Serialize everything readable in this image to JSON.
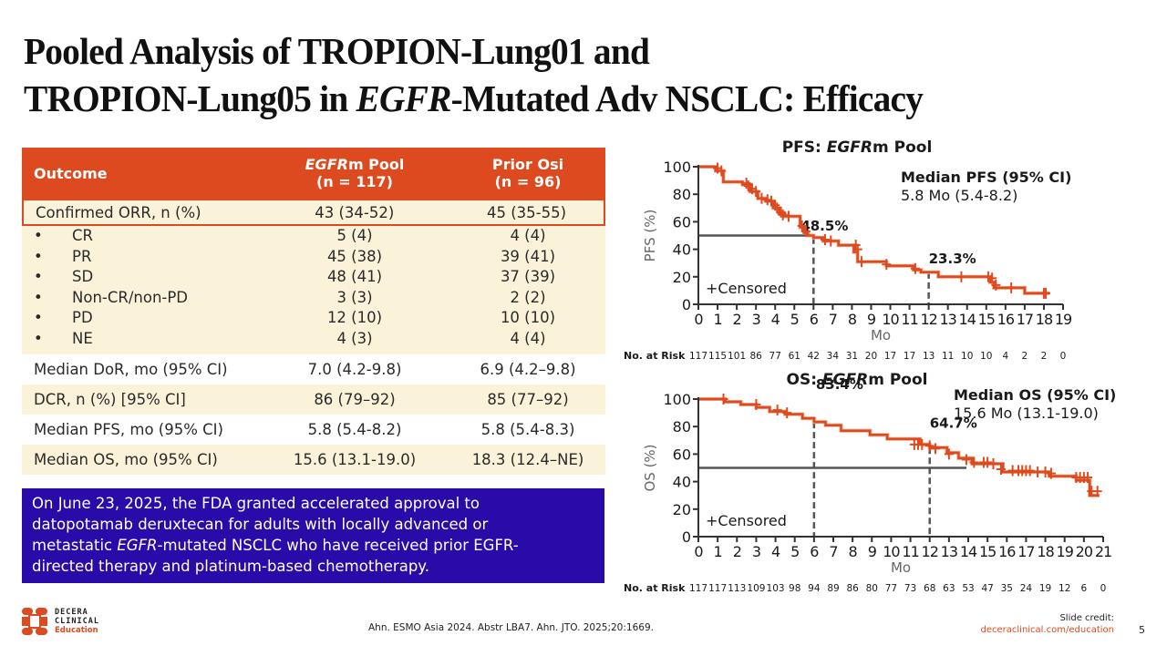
{
  "slide": {
    "title_line1": "Pooled Analysis of TROPION-Lung01 and",
    "title_line2_pre": "TROPION-Lung05 in ",
    "title_line2_italic": "EGFR",
    "title_line2_post": "-Mutated Adv NSCLC: Efficacy"
  },
  "table": {
    "header": {
      "outcome": "Outcome",
      "col1_italic": "EGFR",
      "col1_rest": "m Pool",
      "col1_n": "(n = 117)",
      "col2": "Prior Osi",
      "col2_n": "(n = 96)"
    },
    "orr": {
      "label": "Confirmed ORR, n (%)",
      "pool": "43 (34-52)",
      "osi": "45 (35-55)"
    },
    "subrows": [
      {
        "label": "CR",
        "pool": "5 (4)",
        "osi": "4 (4)"
      },
      {
        "label": "PR",
        "pool": "45 (38)",
        "osi": "39 (41)"
      },
      {
        "label": "SD",
        "pool": "48 (41)",
        "osi": "37 (39)"
      },
      {
        "label": "Non-CR/non-PD",
        "pool": "3 (3)",
        "osi": "2 (2)"
      },
      {
        "label": "PD",
        "pool": "12 (10)",
        "osi": "10 (10)"
      },
      {
        "label": "NE",
        "pool": "4 (3)",
        "osi": "4 (4)"
      }
    ],
    "bullet": "•",
    "rows": [
      {
        "label": "Median DoR, mo (95% CI)",
        "pool": "7.0 (4.2-9.8)",
        "osi": "6.9 (4.2–9.8)"
      },
      {
        "label": "DCR, n (%) [95% CI]",
        "pool": "86 (79–92)",
        "osi": "85 (77–92)"
      },
      {
        "label": "Median PFS, mo (95% CI)",
        "pool": "5.8 (5.4-8.2)",
        "osi": "5.8 (5.4-8.3)"
      },
      {
        "label": "Median OS, mo (95% CI)",
        "pool": "15.6 (13.1-19.0)",
        "osi": "18.3 (12.4–NE)"
      }
    ]
  },
  "fda_box": {
    "line1": "On June 23, 2025, the FDA granted accelerated approval to",
    "line2": "datopotamab deruxtecan for adults with locally advanced or",
    "line3_pre": "metastatic ",
    "line3_italic": "EGFR",
    "line3_post": "-mutated NSCLC who have received prior EGFR-",
    "line4": "directed therapy and platinum-based chemotherapy."
  },
  "chart_data": [
    {
      "type": "line",
      "subtype": "kaplan-meier",
      "title_pre": "PFS: ",
      "title_italic": "EGFR",
      "title_post": "m Pool",
      "ylabel": "PFS (%)",
      "xlabel": "Mo",
      "xlim": [
        0,
        19
      ],
      "ylim": [
        0,
        100
      ],
      "xticks": [
        0,
        1,
        2,
        3,
        4,
        5,
        6,
        7,
        8,
        9,
        10,
        11,
        12,
        13,
        14,
        15,
        16,
        17,
        18,
        19
      ],
      "yticks": [
        0,
        20,
        40,
        60,
        80,
        100
      ],
      "color": "#dd4a1f",
      "median_line_y": 50,
      "landmarks": [
        {
          "x": 6,
          "y": 48.5,
          "label": "48.5%"
        },
        {
          "x": 12,
          "y": 23.3,
          "label": "23.3%"
        }
      ],
      "median_title": "Median PFS (95% CI)",
      "median_value": "5.8 Mo (5.4-8.2)",
      "censored_label": "+Censored",
      "risk_label": "No. at Risk",
      "at_risk": [
        117,
        115,
        101,
        86,
        77,
        61,
        42,
        34,
        31,
        20,
        17,
        17,
        13,
        11,
        10,
        10,
        4,
        2,
        2,
        0
      ],
      "curve": [
        [
          0,
          100
        ],
        [
          0.9,
          100
        ],
        [
          0.9,
          97
        ],
        [
          1.3,
          97
        ],
        [
          1.3,
          89
        ],
        [
          2.3,
          89
        ],
        [
          2.3,
          87
        ],
        [
          2.7,
          87
        ],
        [
          2.7,
          82
        ],
        [
          3.1,
          82
        ],
        [
          3.1,
          77
        ],
        [
          3.5,
          77
        ],
        [
          3.5,
          75
        ],
        [
          3.9,
          75
        ],
        [
          3.9,
          70
        ],
        [
          4.2,
          70
        ],
        [
          4.2,
          66
        ],
        [
          4.5,
          66
        ],
        [
          4.5,
          64
        ],
        [
          5.3,
          64
        ],
        [
          5.3,
          56
        ],
        [
          5.5,
          56
        ],
        [
          5.5,
          52
        ],
        [
          5.7,
          52
        ],
        [
          5.7,
          50
        ],
        [
          6,
          50
        ],
        [
          6,
          48.5
        ],
        [
          6.5,
          48.5
        ],
        [
          6.5,
          46
        ],
        [
          7.3,
          46
        ],
        [
          7.3,
          43
        ],
        [
          8.1,
          43
        ],
        [
          8.1,
          38
        ],
        [
          8.3,
          38
        ],
        [
          8.3,
          31
        ],
        [
          9.8,
          31
        ],
        [
          9.8,
          28
        ],
        [
          11.2,
          28
        ],
        [
          11.2,
          25
        ],
        [
          11.6,
          25
        ],
        [
          11.6,
          23.3
        ],
        [
          12.5,
          23.3
        ],
        [
          12.5,
          20
        ],
        [
          15.2,
          20
        ],
        [
          15.2,
          16
        ],
        [
          15.4,
          16
        ],
        [
          15.4,
          12
        ],
        [
          17,
          12
        ],
        [
          17,
          8
        ],
        [
          18.3,
          8
        ]
      ],
      "censors": [
        [
          1.0,
          99
        ],
        [
          1.2,
          97
        ],
        [
          2.5,
          88
        ],
        [
          2.6,
          86
        ],
        [
          2.8,
          84
        ],
        [
          3.0,
          82
        ],
        [
          3.3,
          77
        ],
        [
          3.6,
          76
        ],
        [
          3.8,
          75
        ],
        [
          4.0,
          72
        ],
        [
          4.1,
          70
        ],
        [
          4.3,
          67
        ],
        [
          4.4,
          65
        ],
        [
          4.7,
          64
        ],
        [
          5.4,
          57
        ],
        [
          5.6,
          53
        ],
        [
          6.6,
          47
        ],
        [
          6.9,
          46
        ],
        [
          8.2,
          43
        ],
        [
          8.3,
          40
        ],
        [
          8.5,
          31
        ],
        [
          9.8,
          29
        ],
        [
          11.3,
          26
        ],
        [
          13.7,
          20
        ],
        [
          15.1,
          20
        ],
        [
          15.3,
          19
        ],
        [
          15.5,
          14
        ],
        [
          16.3,
          12
        ],
        [
          18.0,
          8
        ],
        [
          18.1,
          8
        ]
      ]
    },
    {
      "type": "line",
      "subtype": "kaplan-meier",
      "title_pre": "OS: ",
      "title_italic": "EGFR",
      "title_post": "m Pool",
      "ylabel": "OS (%)",
      "xlabel": "Mo",
      "xlim": [
        0,
        21
      ],
      "ylim": [
        0,
        100
      ],
      "xticks": [
        0,
        1,
        2,
        3,
        4,
        5,
        6,
        7,
        8,
        9,
        10,
        11,
        12,
        13,
        14,
        15,
        16,
        17,
        18,
        19,
        20,
        21
      ],
      "yticks": [
        0,
        20,
        40,
        60,
        80,
        100
      ],
      "color": "#dd4a1f",
      "median_line_y": 50,
      "landmarks": [
        {
          "x": 6,
          "y": 83.4,
          "label": "83.4%"
        },
        {
          "x": 12,
          "y": 64.7,
          "label": "64.7%"
        }
      ],
      "median_title": "Median OS (95% CI)",
      "median_value": "15.6 Mo (13.1-19.0)",
      "censored_label": "+Censored",
      "risk_label": "No. at Risk",
      "at_risk": [
        117,
        117,
        113,
        109,
        103,
        98,
        94,
        89,
        86,
        80,
        77,
        73,
        68,
        63,
        53,
        47,
        35,
        24,
        19,
        12,
        6,
        0
      ],
      "curve": [
        [
          0,
          100
        ],
        [
          1.4,
          100
        ],
        [
          1.4,
          98
        ],
        [
          2.2,
          98
        ],
        [
          2.2,
          96
        ],
        [
          3.0,
          96
        ],
        [
          3.0,
          94
        ],
        [
          3.7,
          94
        ],
        [
          3.7,
          91
        ],
        [
          4.5,
          91
        ],
        [
          4.5,
          89
        ],
        [
          5.4,
          89
        ],
        [
          5.4,
          86
        ],
        [
          6.0,
          86
        ],
        [
          6.0,
          83.4
        ],
        [
          6.6,
          83.4
        ],
        [
          6.6,
          81
        ],
        [
          7.4,
          81
        ],
        [
          7.4,
          77
        ],
        [
          8.9,
          77
        ],
        [
          8.9,
          74
        ],
        [
          9.8,
          74
        ],
        [
          9.8,
          71
        ],
        [
          11.5,
          71
        ],
        [
          11.5,
          67
        ],
        [
          12.0,
          67
        ],
        [
          12.0,
          64.7
        ],
        [
          12.9,
          64.7
        ],
        [
          12.9,
          61
        ],
        [
          13.5,
          61
        ],
        [
          13.5,
          57
        ],
        [
          14.2,
          57
        ],
        [
          14.2,
          53
        ],
        [
          15.8,
          53
        ],
        [
          15.8,
          47
        ],
        [
          18.2,
          47
        ],
        [
          18.2,
          44
        ],
        [
          19.6,
          44
        ],
        [
          19.6,
          41
        ],
        [
          20.3,
          41
        ],
        [
          20.3,
          30
        ],
        [
          20.8,
          30
        ]
      ],
      "censors": [
        [
          1.3,
          100
        ],
        [
          3.0,
          96
        ],
        [
          4.1,
          92
        ],
        [
          4.6,
          90
        ],
        [
          11.2,
          67
        ],
        [
          11.4,
          67
        ],
        [
          11.6,
          67
        ],
        [
          12.0,
          66
        ],
        [
          12.3,
          64
        ],
        [
          13.0,
          60
        ],
        [
          13.9,
          56
        ],
        [
          14.3,
          54
        ],
        [
          14.8,
          54
        ],
        [
          15.0,
          54
        ],
        [
          15.3,
          53
        ],
        [
          15.7,
          49
        ],
        [
          16.3,
          48
        ],
        [
          16.6,
          48
        ],
        [
          16.8,
          48
        ],
        [
          17.0,
          48
        ],
        [
          17.2,
          48
        ],
        [
          17.6,
          47
        ],
        [
          18.0,
          47
        ],
        [
          18.3,
          46
        ],
        [
          19.6,
          43
        ],
        [
          19.8,
          43
        ],
        [
          20.0,
          43
        ],
        [
          20.2,
          43
        ],
        [
          20.4,
          33
        ],
        [
          20.7,
          33
        ]
      ]
    }
  ],
  "footer": {
    "logo_line1": "DECERA",
    "logo_line2": "CLINICAL",
    "logo_line3": "Education",
    "citation": "Ahn. ESMO Asia 2024. Abstr LBA7. Ahn. JTO. 2025;20:1669.",
    "credit_label": "Slide credit:",
    "credit_link": "deceraclinical.com/education",
    "page_number": "5"
  }
}
